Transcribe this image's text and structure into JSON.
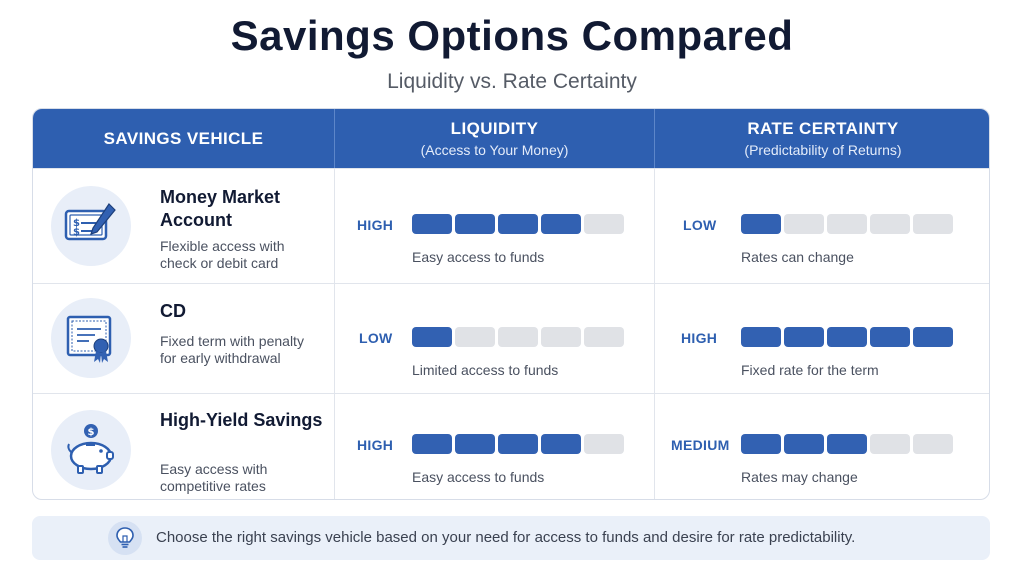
{
  "title": "Savings Options Compared",
  "subtitle": "Liquidity vs. Rate Certainty",
  "columns": {
    "vehicle": "SAVINGS VEHICLE",
    "liquidity": {
      "label": "LIQUIDITY",
      "sub": "(Access to Your Money)"
    },
    "rate": {
      "label": "RATE CERTAINTY",
      "sub": "(Predictability of Returns)"
    }
  },
  "rows": [
    {
      "name": "Money Market Account",
      "desc": "Flexible access with check or debit card",
      "icon": "checkbook-icon",
      "liquidity": {
        "level": "HIGH",
        "score": 4,
        "max": 5,
        "note": "Easy access to funds"
      },
      "rate": {
        "level": "LOW",
        "score": 1,
        "max": 5,
        "note": "Rates can change"
      }
    },
    {
      "name": "CD",
      "desc": "Fixed term with penalty for early withdrawal",
      "icon": "certificate-icon",
      "liquidity": {
        "level": "LOW",
        "score": 1,
        "max": 5,
        "note": "Limited access to funds"
      },
      "rate": {
        "level": "HIGH",
        "score": 5,
        "max": 5,
        "note": "Fixed rate for the term"
      }
    },
    {
      "name": "High-Yield Savings",
      "desc": "Easy access with competitive rates",
      "icon": "piggy-bank-icon",
      "liquidity": {
        "level": "HIGH",
        "score": 4,
        "max": 5,
        "note": "Easy access to funds"
      },
      "rate": {
        "level": "MEDIUM",
        "score": 3,
        "max": 5,
        "note": "Rates may change"
      }
    }
  ],
  "footer": "Choose the right savings vehicle based on your need for access to funds and desire for rate predictability.",
  "colors": {
    "header": "#2e5fb0",
    "bar_on": "#3261b2",
    "bar_off": "#e0e2e6"
  }
}
